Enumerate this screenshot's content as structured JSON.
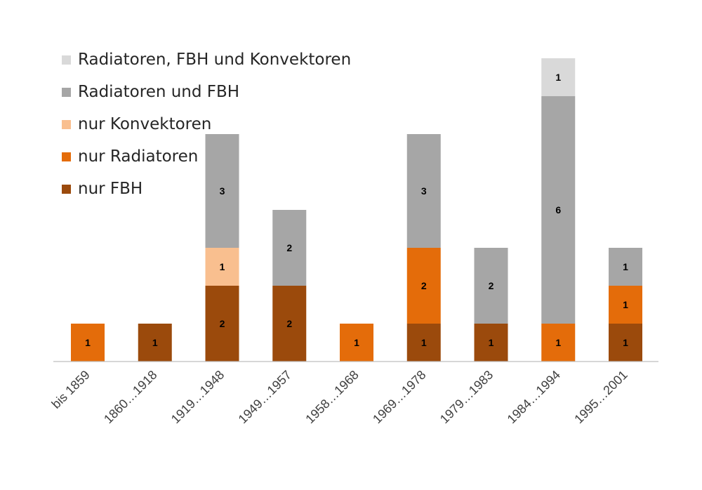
{
  "chart_data": {
    "type": "bar",
    "stacked": true,
    "categories": [
      "bis 1859",
      "1860…1918",
      "1919…1948",
      "1949…1957",
      "1958…1968",
      "1969…1978",
      "1979…1983",
      "1984…1994",
      "1995…2001"
    ],
    "series": [
      {
        "name": "nur FBH",
        "color": "#9b4a0c",
        "values": [
          0,
          1,
          2,
          2,
          0,
          1,
          1,
          0,
          1
        ]
      },
      {
        "name": "nur Radiatoren",
        "color": "#e46c0a",
        "values": [
          1,
          0,
          0,
          0,
          1,
          2,
          0,
          1,
          1
        ]
      },
      {
        "name": "nur Konvektoren",
        "color": "#f9bf8f",
        "values": [
          0,
          0,
          1,
          0,
          0,
          0,
          0,
          0,
          0
        ]
      },
      {
        "name": "Radiatoren und FBH",
        "color": "#a6a6a6",
        "values": [
          0,
          0,
          3,
          2,
          0,
          3,
          2,
          6,
          1
        ]
      },
      {
        "name": "Radiatoren, FBH und Konvektoren",
        "color": "#d9d9d9",
        "values": [
          0,
          0,
          0,
          0,
          0,
          0,
          0,
          1,
          0
        ]
      }
    ],
    "ylim": [
      0,
      8
    ],
    "data_labels": true,
    "grid": false,
    "legend_position": "top-left",
    "title": "",
    "xlabel": "",
    "ylabel": ""
  }
}
